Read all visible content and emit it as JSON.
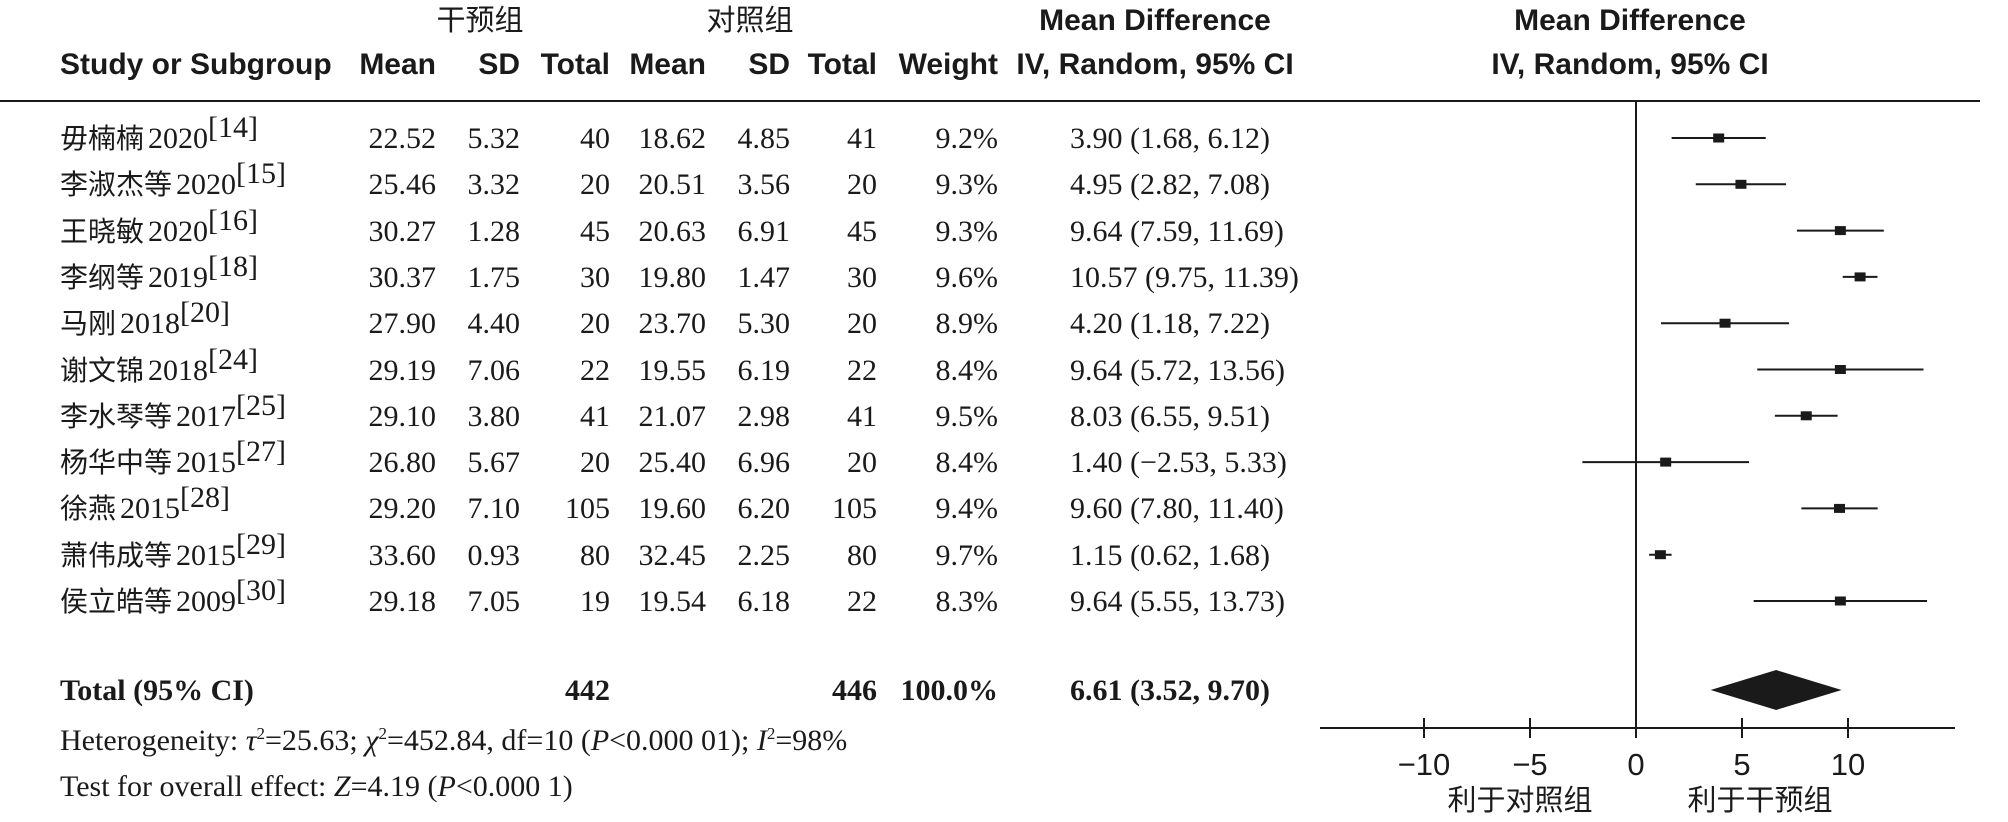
{
  "header": {
    "group_intervention": "干预组",
    "group_control": "对照组",
    "md_title": "Mean Difference",
    "md_subtitle": "IV, Random, 95% CI",
    "plot_title": "Mean Difference",
    "plot_subtitle": "IV, Random, 95% CI",
    "col_study": "Study or Subgroup",
    "col_mean": "Mean",
    "col_sd": "SD",
    "col_total": "Total",
    "col_weight": "Weight"
  },
  "studies": [
    {
      "name": "毋楠楠",
      "year": "2020",
      "ref": "[14]",
      "e_mean": "22.52",
      "e_sd": "5.32",
      "e_total": "40",
      "c_mean": "18.62",
      "c_sd": "4.85",
      "c_total": "41",
      "weight": "9.2%",
      "ci_text": "3.90 (1.68, 6.12)"
    },
    {
      "name": "李淑杰等",
      "year": "2020",
      "ref": "[15]",
      "e_mean": "25.46",
      "e_sd": "3.32",
      "e_total": "20",
      "c_mean": "20.51",
      "c_sd": "3.56",
      "c_total": "20",
      "weight": "9.3%",
      "ci_text": "4.95 (2.82, 7.08)"
    },
    {
      "name": "王晓敏",
      "year": "2020",
      "ref": "[16]",
      "e_mean": "30.27",
      "e_sd": "1.28",
      "e_total": "45",
      "c_mean": "20.63",
      "c_sd": "6.91",
      "c_total": "45",
      "weight": "9.3%",
      "ci_text": "9.64 (7.59, 11.69)"
    },
    {
      "name": "李纲等",
      "year": "2019",
      "ref": "[18]",
      "e_mean": "30.37",
      "e_sd": "1.75",
      "e_total": "30",
      "c_mean": "19.80",
      "c_sd": "1.47",
      "c_total": "30",
      "weight": "9.6%",
      "ci_text": "10.57 (9.75, 11.39)"
    },
    {
      "name": "马刚",
      "year": "2018",
      "ref": "[20]",
      "e_mean": "27.90",
      "e_sd": "4.40",
      "e_total": "20",
      "c_mean": "23.70",
      "c_sd": "5.30",
      "c_total": "20",
      "weight": "8.9%",
      "ci_text": "4.20 (1.18, 7.22)"
    },
    {
      "name": "谢文锦",
      "year": "2018",
      "ref": "[24]",
      "e_mean": "29.19",
      "e_sd": "7.06",
      "e_total": "22",
      "c_mean": "19.55",
      "c_sd": "6.19",
      "c_total": "22",
      "weight": "8.4%",
      "ci_text": "9.64 (5.72, 13.56)"
    },
    {
      "name": "李水琴等",
      "year": "2017",
      "ref": "[25]",
      "e_mean": "29.10",
      "e_sd": "3.80",
      "e_total": "41",
      "c_mean": "21.07",
      "c_sd": "2.98",
      "c_total": "41",
      "weight": "9.5%",
      "ci_text": "8.03 (6.55, 9.51)"
    },
    {
      "name": "杨华中等",
      "year": "2015",
      "ref": "[27]",
      "e_mean": "26.80",
      "e_sd": "5.67",
      "e_total": "20",
      "c_mean": "25.40",
      "c_sd": "6.96",
      "c_total": "20",
      "weight": "8.4%",
      "ci_text": "1.40 (−2.53, 5.33)"
    },
    {
      "name": "徐燕",
      "year": "2015",
      "ref": "[28]",
      "e_mean": "29.20",
      "e_sd": "7.10",
      "e_total": "105",
      "c_mean": "19.60",
      "c_sd": "6.20",
      "c_total": "105",
      "weight": "9.4%",
      "ci_text": "9.60 (7.80, 11.40)"
    },
    {
      "name": "萧伟成等",
      "year": "2015",
      "ref": "[29]",
      "e_mean": "33.60",
      "e_sd": "0.93",
      "e_total": "80",
      "c_mean": "32.45",
      "c_sd": "2.25",
      "c_total": "80",
      "weight": "9.7%",
      "ci_text": "1.15 (0.62, 1.68)"
    },
    {
      "name": "侯立皓等",
      "year": "2009",
      "ref": "[30]",
      "e_mean": "29.18",
      "e_sd": "7.05",
      "e_total": "19",
      "c_mean": "19.54",
      "c_sd": "6.18",
      "c_total": "22",
      "weight": "8.3%",
      "ci_text": "9.64 (5.55, 13.73)"
    }
  ],
  "total": {
    "label": "Total (95% CI)",
    "e_total": "442",
    "c_total": "446",
    "weight": "100.0%",
    "ci_text": "6.61 (3.52, 9.70)"
  },
  "heterogeneity": {
    "prefix": "Heterogeneity: ",
    "tau_sym": "τ",
    "tau_rest": "=25.63; ",
    "chi_sym": "χ",
    "chi_rest": "=452.84, df=10 (",
    "p_sym": "P",
    "p_rest": "<0.000 01); ",
    "i_sym": "I",
    "i_rest": "=98%"
  },
  "overall": {
    "prefix": "Test for overall effect: ",
    "z_sym": "Z",
    "z_rest": "=4.19 (",
    "p_sym": "P",
    "p_rest": "<0.000 1)"
  },
  "axis": {
    "favours_control": "利于对照组",
    "favours_intervention": "利于干预组"
  },
  "chart_data": {
    "type": "forest",
    "title": "Mean Difference",
    "subtitle": "IV, Random, 95% CI",
    "xlim": [
      -14,
      15
    ],
    "ticks": [
      -10,
      -5,
      0,
      5,
      10
    ],
    "tick_labels": [
      "−10",
      "−5",
      "0",
      "5",
      "10"
    ],
    "reference_line": 0,
    "studies": [
      {
        "md": 3.9,
        "lower": 1.68,
        "upper": 6.12,
        "weight": 9.2
      },
      {
        "md": 4.95,
        "lower": 2.82,
        "upper": 7.08,
        "weight": 9.3
      },
      {
        "md": 9.64,
        "lower": 7.59,
        "upper": 11.69,
        "weight": 9.3
      },
      {
        "md": 10.57,
        "lower": 9.75,
        "upper": 11.39,
        "weight": 9.6
      },
      {
        "md": 4.2,
        "lower": 1.18,
        "upper": 7.22,
        "weight": 8.9
      },
      {
        "md": 9.64,
        "lower": 5.72,
        "upper": 13.56,
        "weight": 8.4
      },
      {
        "md": 8.03,
        "lower": 6.55,
        "upper": 9.51,
        "weight": 9.5
      },
      {
        "md": 1.4,
        "lower": -2.53,
        "upper": 5.33,
        "weight": 8.4
      },
      {
        "md": 9.6,
        "lower": 7.8,
        "upper": 11.4,
        "weight": 9.4
      },
      {
        "md": 1.15,
        "lower": 0.62,
        "upper": 1.68,
        "weight": 9.7
      },
      {
        "md": 9.64,
        "lower": 5.55,
        "upper": 13.73,
        "weight": 8.3
      }
    ],
    "pooled": {
      "md": 6.61,
      "lower": 3.52,
      "upper": 9.7
    },
    "xlabel_left": "利于对照组",
    "xlabel_right": "利于干预组"
  }
}
